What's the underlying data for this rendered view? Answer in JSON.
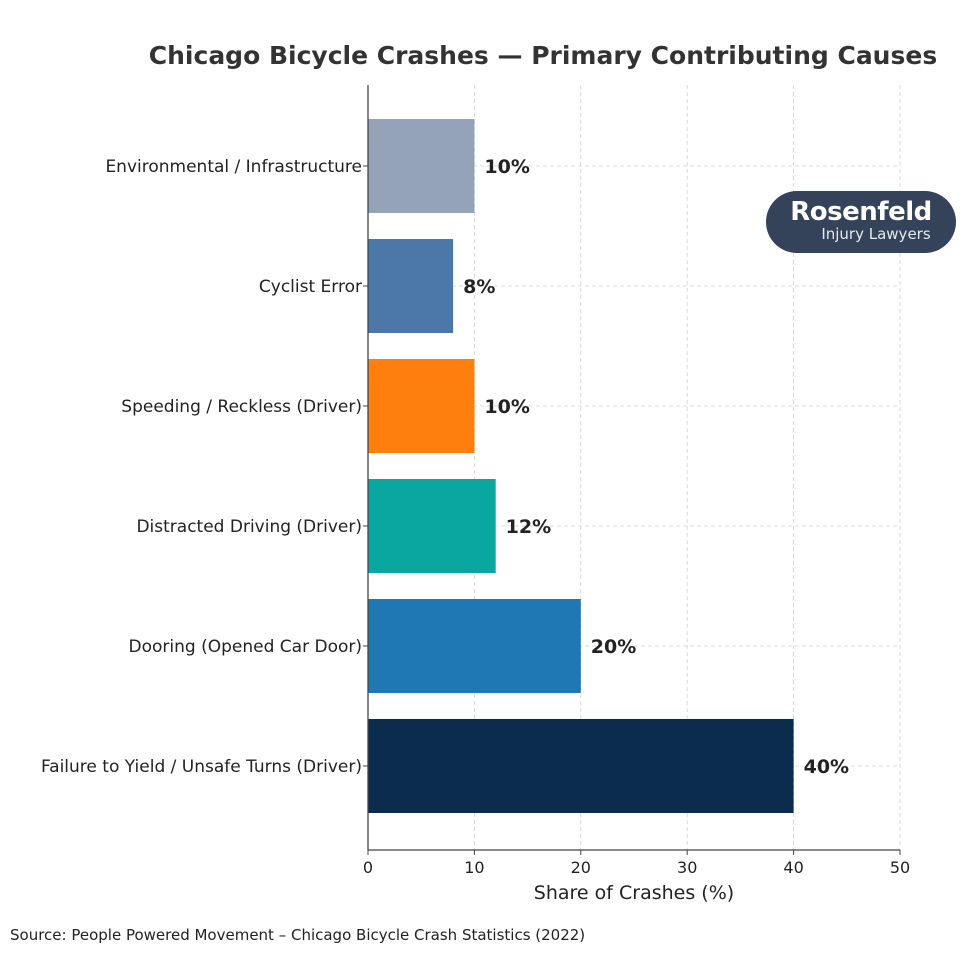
{
  "chart_data": {
    "type": "bar",
    "orientation": "horizontal",
    "title": "Chicago Bicycle Crashes — Primary Contributing Causes",
    "xlabel": "Share of Crashes (%)",
    "ylabel": "",
    "xlim": [
      0,
      50
    ],
    "xticks": [
      0,
      10,
      20,
      30,
      40,
      50
    ],
    "grid": true,
    "categories": [
      "Failure to Yield / Unsafe Turns (Driver)",
      "Dooring (Opened Car Door)",
      "Distracted Driving (Driver)",
      "Speeding / Reckless (Driver)",
      "Cyclist Error",
      "Environmental / Infrastructure"
    ],
    "values": [
      40,
      20,
      12,
      10,
      8,
      10
    ],
    "data_labels": [
      "40%",
      "20%",
      "12%",
      "10%",
      "8%",
      "10%"
    ],
    "colors": [
      "#0b2c4d",
      "#1f77b4",
      "#0aa6a0",
      "#ff7f0e",
      "#4c78a8",
      "#94a3b8"
    ]
  },
  "logo": {
    "line1": "Rosenfeld",
    "line2": "Injury Lawyers",
    "color": "#34425a"
  },
  "source": "Source: People Powered Movement – Chicago Bicycle Crash Statistics (2022)"
}
